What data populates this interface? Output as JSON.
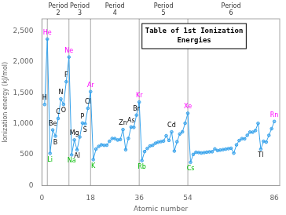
{
  "chart_data": {
    "type": "line",
    "title": "Table of 1st Ionization\nEnergies",
    "xlabel": "Atomic number",
    "ylabel": "Ionization energy (kJ/mol)",
    "x": [
      1,
      2,
      3,
      4,
      5,
      6,
      7,
      8,
      9,
      10,
      11,
      12,
      13,
      14,
      15,
      16,
      17,
      18,
      19,
      20,
      21,
      22,
      23,
      24,
      25,
      26,
      27,
      28,
      29,
      30,
      31,
      32,
      33,
      34,
      35,
      36,
      37,
      38,
      39,
      40,
      41,
      42,
      43,
      44,
      45,
      46,
      47,
      48,
      49,
      50,
      51,
      52,
      53,
      54,
      55,
      56,
      57,
      58,
      59,
      60,
      61,
      62,
      63,
      64,
      65,
      66,
      67,
      68,
      69,
      70,
      71,
      72,
      73,
      74,
      75,
      76,
      77,
      78,
      79,
      80,
      81,
      82,
      83,
      84,
      85,
      86
    ],
    "values": [
      1312,
      2372,
      520,
      900,
      800,
      1086,
      1402,
      1314,
      1681,
      2081,
      496,
      738,
      577,
      786,
      1012,
      1000,
      1251,
      1521,
      419,
      590,
      633,
      659,
      651,
      653,
      717,
      762,
      760,
      737,
      745,
      906,
      579,
      762,
      947,
      941,
      1140,
      1351,
      403,
      550,
      600,
      640,
      652,
      684,
      702,
      711,
      720,
      805,
      731,
      868,
      558,
      709,
      834,
      869,
      1008,
      1170,
      376,
      503,
      538,
      534,
      527,
      533,
      540,
      545,
      547,
      593,
      566,
      573,
      581,
      589,
      597,
      603,
      524,
      658,
      728,
      759,
      756,
      814,
      865,
      864,
      890,
      1007,
      589,
      716,
      703,
      812,
      920,
      1037
    ],
    "xlim": [
      0,
      88
    ],
    "xticks": [
      0,
      18,
      36,
      54,
      86
    ],
    "ylim": [
      0,
      2700
    ],
    "yticks": [
      0,
      500,
      1000,
      1500,
      2000,
      2500
    ],
    "grid": false,
    "vertical_lines": [
      2,
      10,
      18,
      36,
      54
    ],
    "period_labels": [
      {
        "text": "Period\n2",
        "x": 6
      },
      {
        "text": "Period\n3",
        "x": 14
      },
      {
        "text": "Period\n4",
        "x": 27
      },
      {
        "text": "Period\n5",
        "x": 45
      },
      {
        "text": "Period\n6",
        "x": 70
      }
    ],
    "annotations": [
      {
        "text": "H",
        "x": 1,
        "y": 1312,
        "color": "black"
      },
      {
        "text": "He",
        "x": 2,
        "y": 2372,
        "color": "magenta"
      },
      {
        "text": "Li",
        "x": 3,
        "y": 520,
        "color": "#00bb00"
      },
      {
        "text": "Be",
        "x": 4,
        "y": 900,
        "color": "black"
      },
      {
        "text": "B",
        "x": 5,
        "y": 800,
        "color": "black"
      },
      {
        "text": "C",
        "x": 6,
        "y": 1086,
        "color": "black"
      },
      {
        "text": "N",
        "x": 7,
        "y": 1402,
        "color": "black"
      },
      {
        "text": "O",
        "x": 8,
        "y": 1314,
        "color": "black"
      },
      {
        "text": "F",
        "x": 9,
        "y": 1681,
        "color": "black"
      },
      {
        "text": "Ne",
        "x": 10,
        "y": 2081,
        "color": "magenta"
      },
      {
        "text": "Na",
        "x": 11,
        "y": 496,
        "color": "#00bb00"
      },
      {
        "text": "Mg",
        "x": 12,
        "y": 738,
        "color": "black"
      },
      {
        "text": "Al",
        "x": 13,
        "y": 577,
        "color": "black"
      },
      {
        "text": "P",
        "x": 15,
        "y": 1012,
        "color": "black"
      },
      {
        "text": "S",
        "x": 16,
        "y": 1000,
        "color": "black"
      },
      {
        "text": "Cl",
        "x": 17,
        "y": 1251,
        "color": "black"
      },
      {
        "text": "Ar",
        "x": 18,
        "y": 1521,
        "color": "magenta"
      },
      {
        "text": "K",
        "x": 19,
        "y": 419,
        "color": "#00bb00"
      },
      {
        "text": "Zn",
        "x": 30,
        "y": 906,
        "color": "black"
      },
      {
        "text": "As",
        "x": 33,
        "y": 947,
        "color": "black"
      },
      {
        "text": "Br",
        "x": 35,
        "y": 1140,
        "color": "black"
      },
      {
        "text": "Kr",
        "x": 36,
        "y": 1351,
        "color": "magenta"
      },
      {
        "text": "Rb",
        "x": 37,
        "y": 403,
        "color": "#00bb00"
      },
      {
        "text": "Cd",
        "x": 48,
        "y": 868,
        "color": "black"
      },
      {
        "text": "Xe",
        "x": 54,
        "y": 1170,
        "color": "magenta"
      },
      {
        "text": "Cs",
        "x": 55,
        "y": 376,
        "color": "#00bb00"
      },
      {
        "text": "Tl",
        "x": 81,
        "y": 589,
        "color": "black"
      },
      {
        "text": "Rn",
        "x": 86,
        "y": 1037,
        "color": "magenta"
      }
    ]
  }
}
